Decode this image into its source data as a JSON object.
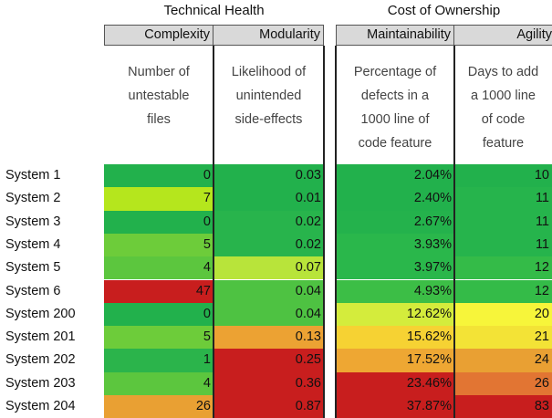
{
  "groups": {
    "technical": "Technical Health",
    "cost": "Cost of Ownership"
  },
  "columns": {
    "complexity": {
      "header": "Complexity",
      "desc": [
        "Number of",
        "untestable",
        "files"
      ]
    },
    "modularity": {
      "header": "Modularity",
      "desc": [
        "Likelihood of",
        "unintended",
        "side-effects"
      ]
    },
    "maintainability": {
      "header": "Maintainability",
      "desc": [
        "Percentage of",
        "defects in a",
        "1000 line of",
        "code feature"
      ]
    },
    "agility": {
      "header": "Agility",
      "desc": [
        "Days to add",
        "a 1000 line",
        "of code",
        "feature"
      ]
    }
  },
  "rows": [
    {
      "system": "System 1",
      "complexity": "0",
      "complexity_color": "#22b14c",
      "modularity": "0.03",
      "modularity_color": "#22b14c",
      "maintainability": "2.04%",
      "maintainability_color": "#22b14c",
      "agility": "10",
      "agility_color": "#22b14c"
    },
    {
      "system": "System 2",
      "complexity": "7",
      "complexity_color": "#b5e61d",
      "modularity": "0.01",
      "modularity_color": "#22b14c",
      "maintainability": "2.40%",
      "maintainability_color": "#22b14c",
      "agility": "11",
      "agility_color": "#26b44c"
    },
    {
      "system": "System 3",
      "complexity": "0",
      "complexity_color": "#22b14c",
      "modularity": "0.02",
      "modularity_color": "#28b44c",
      "maintainability": "2.67%",
      "maintainability_color": "#24b24c",
      "agility": "11",
      "agility_color": "#26b44c"
    },
    {
      "system": "System 4",
      "complexity": "5",
      "complexity_color": "#6dcc3a",
      "modularity": "0.02",
      "modularity_color": "#28b44c",
      "maintainability": "3.93%",
      "maintainability_color": "#2ab74b",
      "agility": "11",
      "agility_color": "#26b44c"
    },
    {
      "system": "System 5",
      "complexity": "4",
      "complexity_color": "#5cc63e",
      "modularity": "0.07",
      "modularity_color": "#b8e43a",
      "maintainability": "3.97%",
      "maintainability_color": "#2ab74b",
      "agility": "12",
      "agility_color": "#34bb48"
    },
    {
      "system": "System 6",
      "complexity": "47",
      "complexity_color": "#c81e1e",
      "modularity": "0.04",
      "modularity_color": "#4ec242",
      "maintainability": "4.93%",
      "maintainability_color": "#3cbe46",
      "agility": "12",
      "agility_color": "#34bb48"
    },
    {
      "system": "System 200",
      "complexity": "0",
      "complexity_color": "#22b14c",
      "modularity": "0.04",
      "modularity_color": "#4ec242",
      "maintainability": "12.62%",
      "maintainability_color": "#d4ec3c",
      "agility": "20",
      "agility_color": "#f7f53a"
    },
    {
      "system": "System 201",
      "complexity": "5",
      "complexity_color": "#6dcc3a",
      "modularity": "0.13",
      "modularity_color": "#eca233",
      "maintainability": "15.62%",
      "maintainability_color": "#f6d233",
      "agility": "21",
      "agility_color": "#f3e336"
    },
    {
      "system": "System 202",
      "complexity": "1",
      "complexity_color": "#2bb44b",
      "modularity": "0.25",
      "modularity_color": "#c81e1e",
      "maintainability": "17.52%",
      "maintainability_color": "#eea733",
      "agility": "24",
      "agility_color": "#e9a033"
    },
    {
      "system": "System 203",
      "complexity": "4",
      "complexity_color": "#5cc63e",
      "modularity": "0.36",
      "modularity_color": "#c81e1e",
      "maintainability": "23.46%",
      "maintainability_color": "#c81e1e",
      "agility": "26",
      "agility_color": "#e27533"
    },
    {
      "system": "System 204",
      "complexity": "26",
      "complexity_color": "#e9a033",
      "modularity": "0.87",
      "modularity_color": "#c81e1e",
      "maintainability": "37.87%",
      "maintainability_color": "#c81e1e",
      "agility": "83",
      "agility_color": "#c81e1e"
    }
  ]
}
